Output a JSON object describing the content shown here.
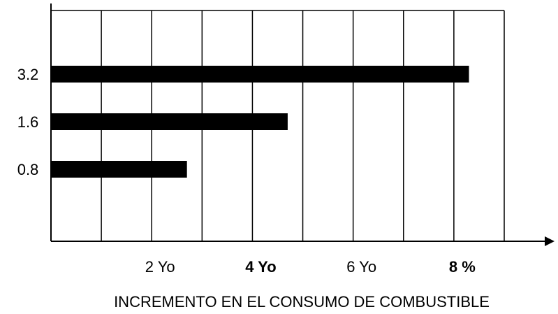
{
  "chart_data": {
    "type": "bar",
    "orientation": "horizontal",
    "xlabel": "INCREMENTO EN EL CONSUMO DE COMBUSTIBLE",
    "categories": [
      "0.8",
      "1.6",
      "3.2"
    ],
    "values": [
      2.7,
      4.7,
      8.3
    ],
    "color": "#000000",
    "xlim": [
      0,
      9
    ],
    "xticks": [
      {
        "value": 2,
        "label": "2 Yo"
      },
      {
        "value": 4,
        "label": "4 Yo"
      },
      {
        "value": 6,
        "label": "6 Yo"
      },
      {
        "value": 8,
        "label": "8 %"
      }
    ],
    "minor_xticks": [
      1,
      3,
      5,
      7,
      9
    ],
    "grid": true
  }
}
